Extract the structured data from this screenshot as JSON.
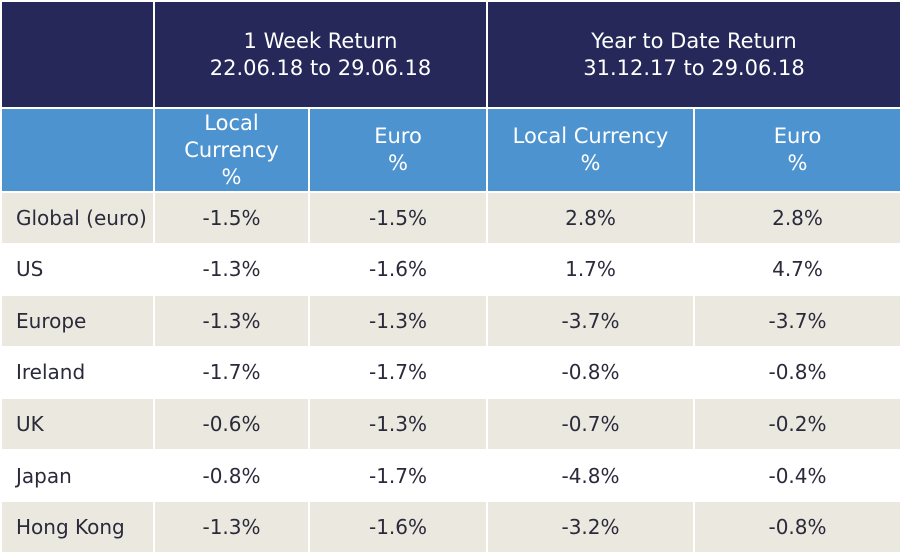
{
  "header": {
    "groups": [
      {
        "title": "1 Week Return",
        "period": "22.06.18 to 29.06.18"
      },
      {
        "title": "Year to Date Return",
        "period": "31.12.17 to 29.06.18"
      }
    ],
    "subcolumns": [
      [
        "Local",
        "Currency",
        "%"
      ],
      [
        "Euro",
        "%"
      ],
      [
        "Local Currency",
        "%"
      ],
      [
        "Euro",
        "%"
      ]
    ]
  },
  "rows": [
    {
      "region": "Global (euro)",
      "values": [
        "-1.5%",
        "-1.5%",
        "2.8%",
        "2.8%"
      ]
    },
    {
      "region": "US",
      "values": [
        "-1.3%",
        "-1.6%",
        "1.7%",
        "4.7%"
      ]
    },
    {
      "region": "Europe",
      "values": [
        "-1.3%",
        "-1.3%",
        "-3.7%",
        "-3.7%"
      ]
    },
    {
      "region": "Ireland",
      "values": [
        "-1.7%",
        "-1.7%",
        "-0.8%",
        "-0.8%"
      ]
    },
    {
      "region": "UK",
      "values": [
        "-0.6%",
        "-1.3%",
        "-0.7%",
        "-0.2%"
      ]
    },
    {
      "region": "Japan",
      "values": [
        "-0.8%",
        "-1.7%",
        "-4.8%",
        "-0.4%"
      ]
    },
    {
      "region": "Hong Kong",
      "values": [
        "-1.3%",
        "-1.6%",
        "-3.2%",
        "-0.8%"
      ]
    }
  ],
  "colors": {
    "group_header_bg": "#252858",
    "sub_header_bg": "#4d93cf",
    "row_alt_bg": "#ebe8df",
    "row_bg": "#ffffff",
    "body_text": "#2a2a3a"
  }
}
